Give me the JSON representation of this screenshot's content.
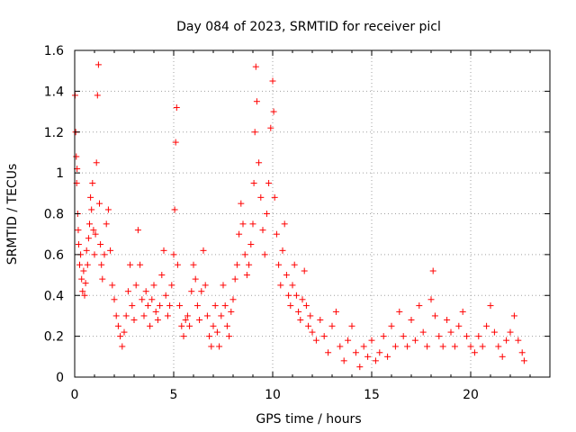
{
  "chart_data": {
    "type": "scatter",
    "title": "Day 084 of 2023, SRMTID for receiver picl",
    "xlabel": "GPS time / hours",
    "ylabel": "SRMTID / TECUs",
    "xlim": [
      0,
      24
    ],
    "ylim": [
      0,
      1.6
    ],
    "xticks": [
      0,
      5,
      10,
      15,
      20
    ],
    "xtick_labels": [
      "0",
      "5",
      "10",
      "15",
      "20"
    ],
    "yticks": [
      0,
      0.2,
      0.4,
      0.6,
      0.8,
      1,
      1.2,
      1.4,
      1.6
    ],
    "ytick_labels": [
      "0",
      "0.2",
      "0.4",
      "0.6",
      "0.8",
      "1",
      "1.2",
      "1.4",
      "1.6"
    ],
    "grid": true,
    "marker": "+",
    "color": "#ff0000",
    "series": [
      {
        "name": "SRMTID",
        "points": [
          [
            0.02,
            1.38
          ],
          [
            0.05,
            1.2
          ],
          [
            0.08,
            1.08
          ],
          [
            0.1,
            0.95
          ],
          [
            0.12,
            1.02
          ],
          [
            0.15,
            0.8
          ],
          [
            0.18,
            0.72
          ],
          [
            0.2,
            0.65
          ],
          [
            0.25,
            0.55
          ],
          [
            0.3,
            0.6
          ],
          [
            0.35,
            0.48
          ],
          [
            0.4,
            0.42
          ],
          [
            0.45,
            0.52
          ],
          [
            0.5,
            0.4
          ],
          [
            0.55,
            0.46
          ],
          [
            0.6,
            0.62
          ],
          [
            0.65,
            0.55
          ],
          [
            0.7,
            0.68
          ],
          [
            0.75,
            0.75
          ],
          [
            0.8,
            0.88
          ],
          [
            0.85,
            0.82
          ],
          [
            0.9,
            0.95
          ],
          [
            0.95,
            0.72
          ],
          [
            1.0,
            0.6
          ],
          [
            1.05,
            0.7
          ],
          [
            1.1,
            1.05
          ],
          [
            1.15,
            1.38
          ],
          [
            1.2,
            1.53
          ],
          [
            1.25,
            0.85
          ],
          [
            1.3,
            0.65
          ],
          [
            1.35,
            0.55
          ],
          [
            1.4,
            0.48
          ],
          [
            1.5,
            0.6
          ],
          [
            1.6,
            0.75
          ],
          [
            1.7,
            0.82
          ],
          [
            1.8,
            0.62
          ],
          [
            1.9,
            0.45
          ],
          [
            2.0,
            0.38
          ],
          [
            2.1,
            0.3
          ],
          [
            2.2,
            0.25
          ],
          [
            2.3,
            0.2
          ],
          [
            2.4,
            0.15
          ],
          [
            2.5,
            0.22
          ],
          [
            2.6,
            0.3
          ],
          [
            2.7,
            0.42
          ],
          [
            2.8,
            0.55
          ],
          [
            2.9,
            0.35
          ],
          [
            3.0,
            0.28
          ],
          [
            3.1,
            0.45
          ],
          [
            3.2,
            0.72
          ],
          [
            3.3,
            0.55
          ],
          [
            3.4,
            0.38
          ],
          [
            3.5,
            0.3
          ],
          [
            3.6,
            0.42
          ],
          [
            3.7,
            0.35
          ],
          [
            3.8,
            0.25
          ],
          [
            3.9,
            0.38
          ],
          [
            4.0,
            0.45
          ],
          [
            4.1,
            0.32
          ],
          [
            4.2,
            0.28
          ],
          [
            4.3,
            0.35
          ],
          [
            4.4,
            0.5
          ],
          [
            4.5,
            0.62
          ],
          [
            4.6,
            0.4
          ],
          [
            4.7,
            0.3
          ],
          [
            4.8,
            0.35
          ],
          [
            4.9,
            0.45
          ],
          [
            5.0,
            0.6
          ],
          [
            5.05,
            0.82
          ],
          [
            5.1,
            1.15
          ],
          [
            5.15,
            1.32
          ],
          [
            5.2,
            0.55
          ],
          [
            5.3,
            0.35
          ],
          [
            5.4,
            0.25
          ],
          [
            5.5,
            0.2
          ],
          [
            5.6,
            0.28
          ],
          [
            5.7,
            0.3
          ],
          [
            5.8,
            0.25
          ],
          [
            5.9,
            0.42
          ],
          [
            6.0,
            0.55
          ],
          [
            6.1,
            0.48
          ],
          [
            6.2,
            0.35
          ],
          [
            6.3,
            0.28
          ],
          [
            6.4,
            0.42
          ],
          [
            6.5,
            0.62
          ],
          [
            6.6,
            0.45
          ],
          [
            6.7,
            0.3
          ],
          [
            6.8,
            0.2
          ],
          [
            6.9,
            0.15
          ],
          [
            7.0,
            0.25
          ],
          [
            7.1,
            0.35
          ],
          [
            7.2,
            0.22
          ],
          [
            7.3,
            0.15
          ],
          [
            7.4,
            0.3
          ],
          [
            7.5,
            0.45
          ],
          [
            7.6,
            0.35
          ],
          [
            7.7,
            0.25
          ],
          [
            7.8,
            0.2
          ],
          [
            7.9,
            0.32
          ],
          [
            8.0,
            0.38
          ],
          [
            8.1,
            0.48
          ],
          [
            8.2,
            0.55
          ],
          [
            8.3,
            0.7
          ],
          [
            8.4,
            0.85
          ],
          [
            8.5,
            0.75
          ],
          [
            8.6,
            0.6
          ],
          [
            8.7,
            0.5
          ],
          [
            8.8,
            0.55
          ],
          [
            8.9,
            0.65
          ],
          [
            9.0,
            0.75
          ],
          [
            9.05,
            0.95
          ],
          [
            9.1,
            1.2
          ],
          [
            9.15,
            1.52
          ],
          [
            9.2,
            1.35
          ],
          [
            9.3,
            1.05
          ],
          [
            9.4,
            0.88
          ],
          [
            9.5,
            0.72
          ],
          [
            9.6,
            0.6
          ],
          [
            9.7,
            0.8
          ],
          [
            9.8,
            0.95
          ],
          [
            9.9,
            1.22
          ],
          [
            10.0,
            1.45
          ],
          [
            10.05,
            1.3
          ],
          [
            10.1,
            0.88
          ],
          [
            10.2,
            0.7
          ],
          [
            10.3,
            0.55
          ],
          [
            10.4,
            0.45
          ],
          [
            10.5,
            0.62
          ],
          [
            10.6,
            0.75
          ],
          [
            10.7,
            0.5
          ],
          [
            10.8,
            0.4
          ],
          [
            10.9,
            0.35
          ],
          [
            11.0,
            0.45
          ],
          [
            11.1,
            0.55
          ],
          [
            11.2,
            0.4
          ],
          [
            11.3,
            0.32
          ],
          [
            11.4,
            0.28
          ],
          [
            11.5,
            0.38
          ],
          [
            11.6,
            0.52
          ],
          [
            11.7,
            0.35
          ],
          [
            11.8,
            0.25
          ],
          [
            11.9,
            0.3
          ],
          [
            12.0,
            0.22
          ],
          [
            12.2,
            0.18
          ],
          [
            12.4,
            0.28
          ],
          [
            12.6,
            0.2
          ],
          [
            12.8,
            0.12
          ],
          [
            13.0,
            0.25
          ],
          [
            13.2,
            0.32
          ],
          [
            13.4,
            0.15
          ],
          [
            13.6,
            0.08
          ],
          [
            13.8,
            0.18
          ],
          [
            14.0,
            0.25
          ],
          [
            14.2,
            0.12
          ],
          [
            14.4,
            0.05
          ],
          [
            14.6,
            0.15
          ],
          [
            14.8,
            0.1
          ],
          [
            15.0,
            0.18
          ],
          [
            15.2,
            0.08
          ],
          [
            15.4,
            0.12
          ],
          [
            15.6,
            0.2
          ],
          [
            15.8,
            0.1
          ],
          [
            16.0,
            0.25
          ],
          [
            16.2,
            0.15
          ],
          [
            16.4,
            0.32
          ],
          [
            16.6,
            0.2
          ],
          [
            16.8,
            0.15
          ],
          [
            17.0,
            0.28
          ],
          [
            17.2,
            0.18
          ],
          [
            17.4,
            0.35
          ],
          [
            17.6,
            0.22
          ],
          [
            17.8,
            0.15
          ],
          [
            18.0,
            0.38
          ],
          [
            18.1,
            0.52
          ],
          [
            18.2,
            0.3
          ],
          [
            18.4,
            0.2
          ],
          [
            18.6,
            0.15
          ],
          [
            18.8,
            0.28
          ],
          [
            19.0,
            0.22
          ],
          [
            19.2,
            0.15
          ],
          [
            19.4,
            0.25
          ],
          [
            19.6,
            0.32
          ],
          [
            19.8,
            0.2
          ],
          [
            20.0,
            0.15
          ],
          [
            20.2,
            0.12
          ],
          [
            20.4,
            0.2
          ],
          [
            20.6,
            0.15
          ],
          [
            20.8,
            0.25
          ],
          [
            21.0,
            0.35
          ],
          [
            21.2,
            0.22
          ],
          [
            21.4,
            0.15
          ],
          [
            21.6,
            0.1
          ],
          [
            21.8,
            0.18
          ],
          [
            22.0,
            0.22
          ],
          [
            22.2,
            0.3
          ],
          [
            22.4,
            0.18
          ],
          [
            22.6,
            0.12
          ],
          [
            22.7,
            0.08
          ]
        ]
      }
    ]
  }
}
